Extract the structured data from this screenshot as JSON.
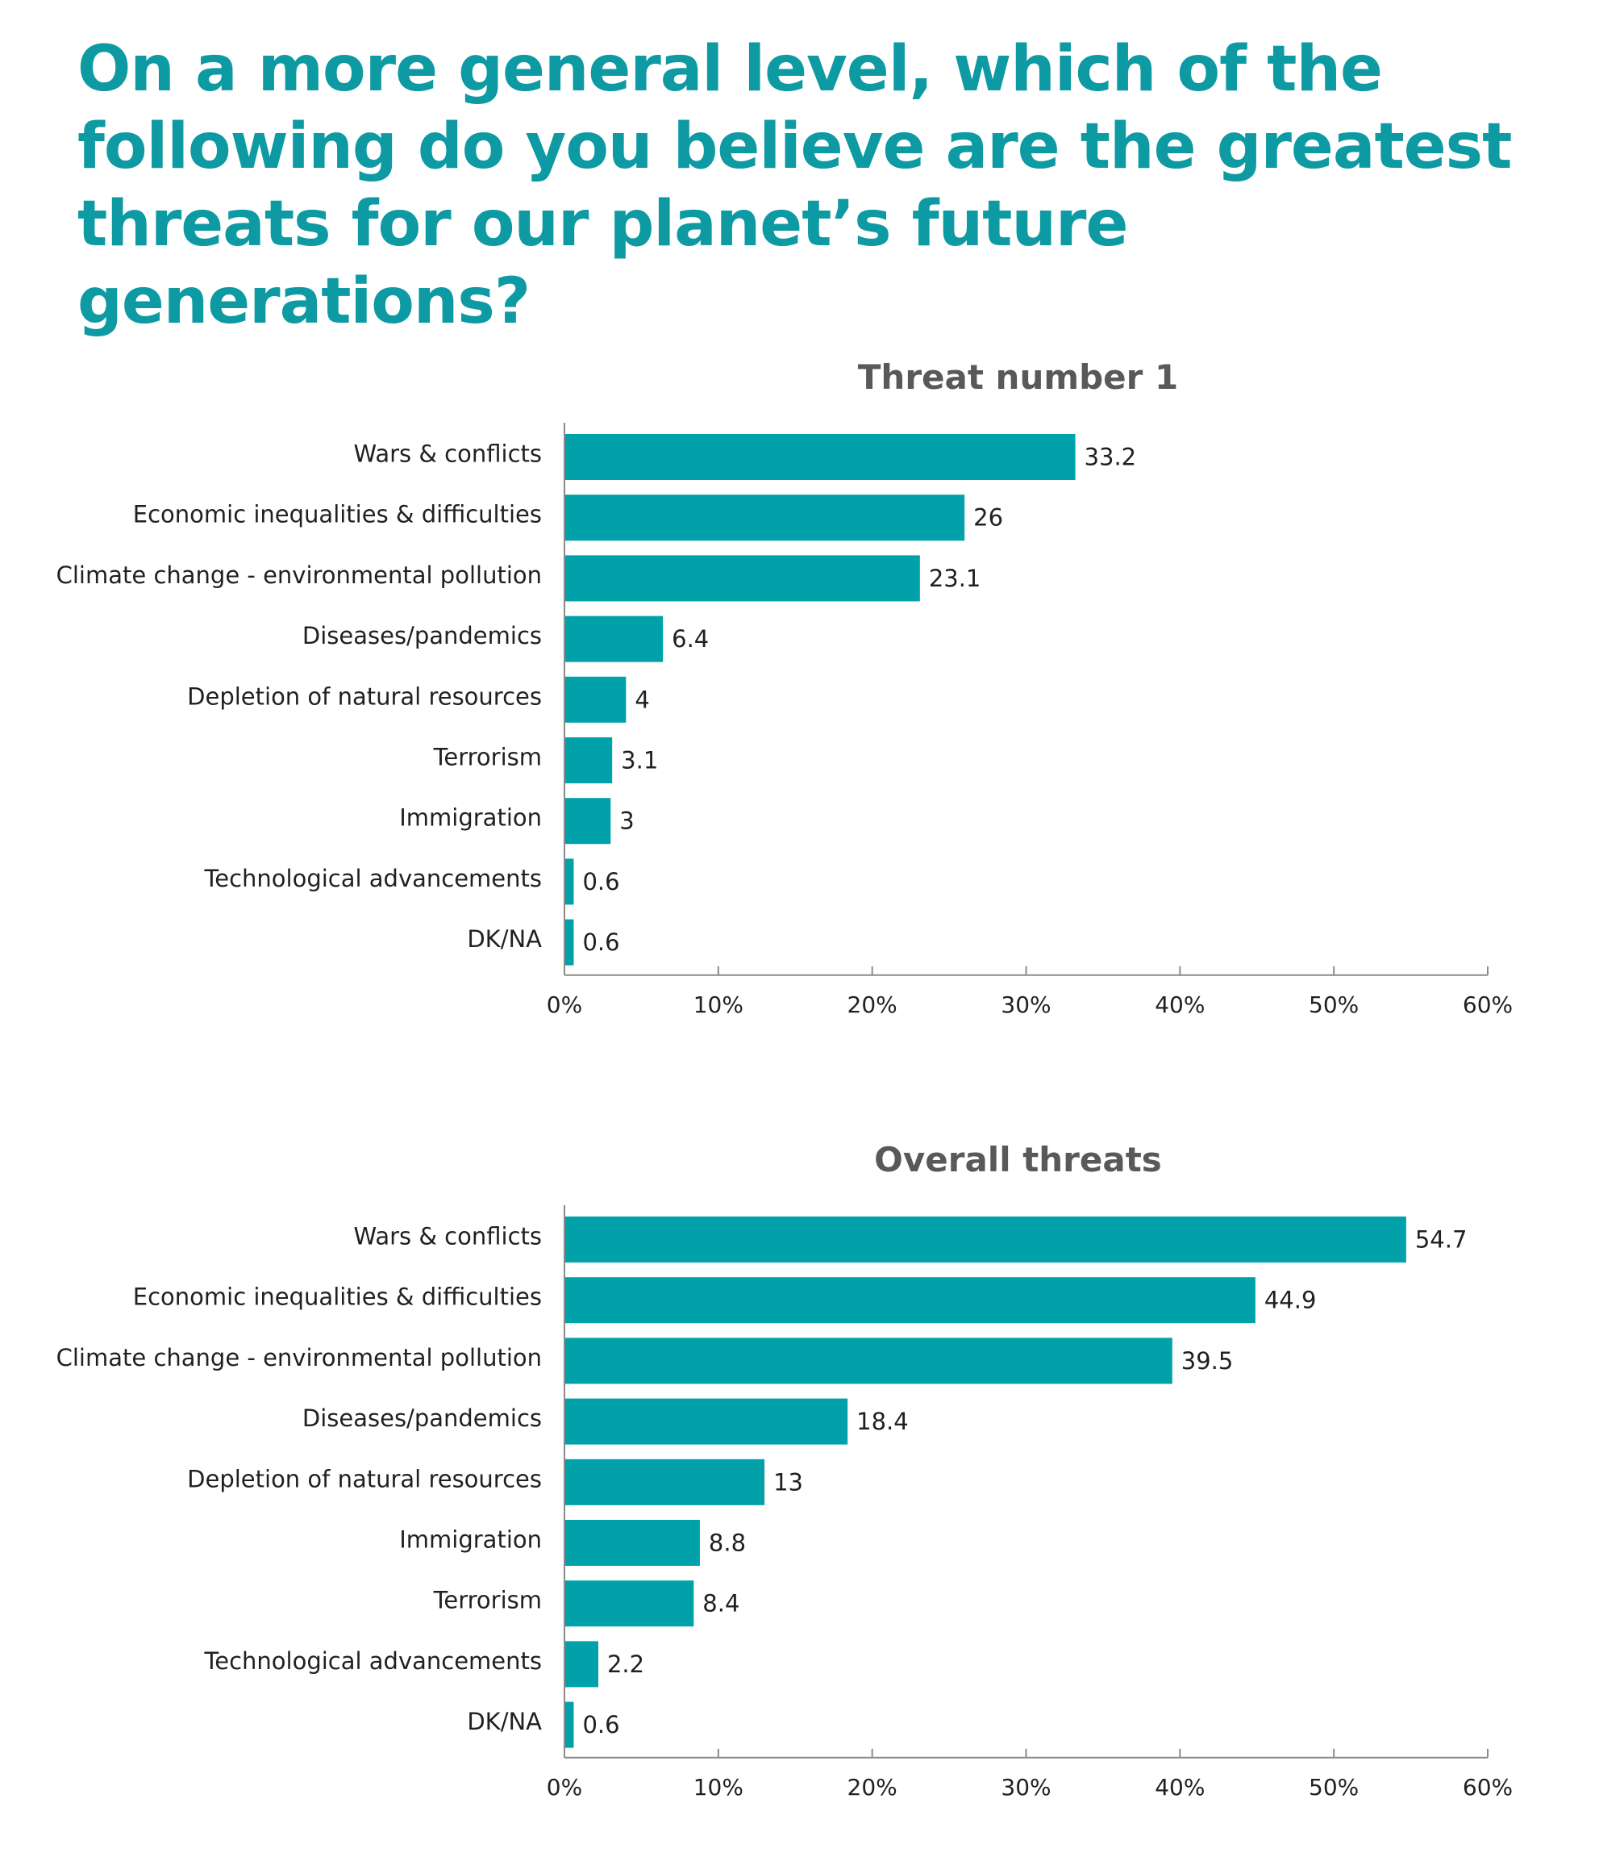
{
  "headline": "On a more general level, which of the following do you believe are the greatest threats for our planet’s future generations?",
  "colors": {
    "bar": "#00a1a8",
    "headline": "#0d9aa3",
    "chart_title": "#58595b"
  },
  "chart_data": [
    {
      "type": "bar",
      "orientation": "horizontal",
      "title": "Threat number 1",
      "categories": [
        "Wars & conflicts",
        "Economic inequalities & difficulties",
        "Climate change - environmental pollution",
        "Diseases/pandemics",
        "Depletion of natural resources",
        "Terrorism",
        "Immigration",
        "Technological advancements",
        "DK/NA"
      ],
      "values": [
        33.2,
        26,
        23.1,
        6.4,
        4,
        3.1,
        3,
        0.6,
        0.6
      ],
      "value_labels": [
        "33.2",
        "26",
        "23.1",
        "6.4",
        "4",
        "3.1",
        "3",
        "0.6",
        "0.6"
      ],
      "xlim": [
        0,
        60
      ],
      "xticks": [
        0,
        10,
        20,
        30,
        40,
        50,
        60
      ],
      "xtick_labels": [
        "0%",
        "10%",
        "20%",
        "30%",
        "40%",
        "50%",
        "60%"
      ],
      "grid": false,
      "legend": "none"
    },
    {
      "type": "bar",
      "orientation": "horizontal",
      "title": "Overall threats",
      "categories": [
        "Wars & conflicts",
        "Economic inequalities & difficulties",
        "Climate change - environmental pollution",
        "Diseases/pandemics",
        "Depletion of natural resources",
        "Immigration",
        "Terrorism",
        "Technological advancements",
        "DK/NA"
      ],
      "values": [
        54.7,
        44.9,
        39.5,
        18.4,
        13,
        8.8,
        8.4,
        2.2,
        0.6
      ],
      "value_labels": [
        "54.7",
        "44.9",
        "39.5",
        "18.4",
        "13",
        "8.8",
        "8.4",
        "2.2",
        "0.6"
      ],
      "xlim": [
        0,
        60
      ],
      "xticks": [
        0,
        10,
        20,
        30,
        40,
        50,
        60
      ],
      "xtick_labels": [
        "0%",
        "10%",
        "20%",
        "30%",
        "40%",
        "50%",
        "60%"
      ],
      "grid": false,
      "legend": "none"
    }
  ]
}
